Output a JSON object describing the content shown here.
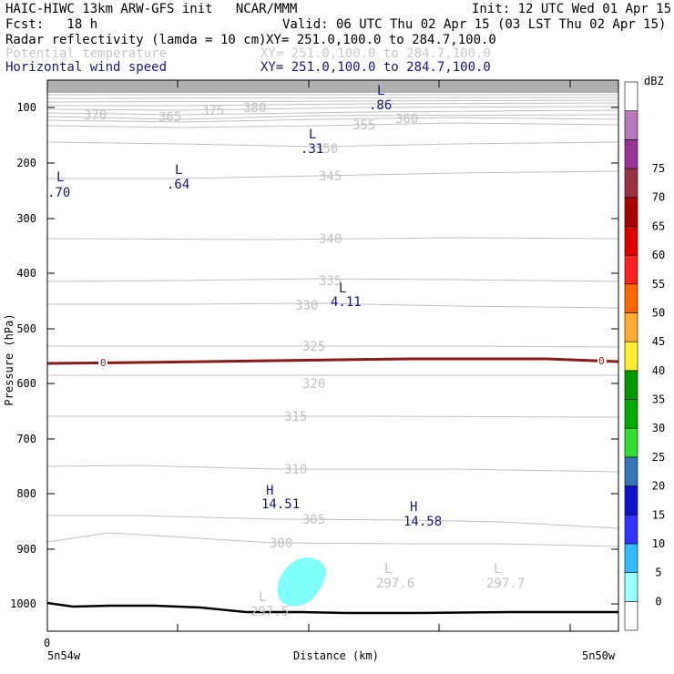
{
  "header": {
    "title_left": "HAIC-HIWC 13km ARW-GFS init   NCAR/MMM",
    "init": "Init: 12 UTC Wed 01 Apr 15",
    "fcst": "Fcst:   18 h",
    "valid": "Valid: 06 UTC Thu 02 Apr 15 (03 LST Thu 02 Apr 15)",
    "fields": [
      {
        "name": "Radar reflectivity (lamda = 10 cm)",
        "xy": "XY= 251.0,100.0 to 284.7,100.0",
        "color": "#000000"
      },
      {
        "name": "Potential temperature",
        "xy": "XY= 251.0,100.0 to 284.7,100.0",
        "color": "#c8c8c8"
      },
      {
        "name": "Horizontal wind speed",
        "xy": "XY= 251.0,100.0 to 284.7,100.0",
        "color": "#191970"
      }
    ]
  },
  "chart_data": {
    "type": "cross-section",
    "ylabel": "Pressure (hPa)",
    "xlabel": "Distance (km)",
    "yticks": [
      100,
      200,
      300,
      400,
      500,
      600,
      700,
      800,
      900,
      1000
    ],
    "xtick_first": "0",
    "x_start_label": "5n54w",
    "x_end_label": "5n50w",
    "colorbar": {
      "unit": "dBZ",
      "levels": [
        "0",
        "5",
        "10",
        "15",
        "20",
        "25",
        "30",
        "35",
        "40",
        "45",
        "50",
        "55",
        "60",
        "65",
        "70",
        "75"
      ],
      "colors": [
        "#ffffff",
        "#99ffff",
        "#33bbff",
        "#3333ff",
        "#1111cc",
        "#3377bb",
        "#33dd33",
        "#00aa00",
        "#009900",
        "#ffee33",
        "#ffaa33",
        "#ff6600",
        "#ff2222",
        "#dd0000",
        "#aa0000",
        "#993344",
        "#993399",
        "#bb77bb",
        "#ffffff"
      ]
    },
    "theta_labels": [
      "370",
      "365",
      "375",
      "380",
      "355",
      "360",
      "350",
      "345",
      "340",
      "335",
      "330",
      "325",
      "320",
      "315",
      "310",
      "305",
      "300"
    ],
    "freezing_level_labels": [
      "0",
      "0"
    ],
    "wind_extrema": [
      {
        "type": "L",
        "value": ".86"
      },
      {
        "type": "L",
        "value": ".31"
      },
      {
        "type": "L",
        "value": ".70"
      },
      {
        "type": "L",
        "value": ".64"
      },
      {
        "type": "L",
        "value": "4.11"
      },
      {
        "type": "H",
        "value": "14.51"
      },
      {
        "type": "H",
        "value": "14.58"
      }
    ],
    "theta_extrema": [
      {
        "type": "L",
        "value": "297.5"
      },
      {
        "type": "L",
        "value": "297.6"
      },
      {
        "type": "L",
        "value": "297.7"
      }
    ]
  }
}
